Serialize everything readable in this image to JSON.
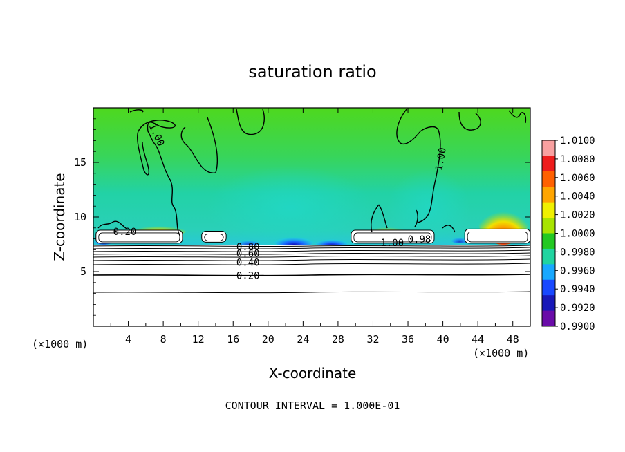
{
  "chart_data": {
    "type": "heatmap",
    "title": "saturation ratio",
    "xlabel": "X-coordinate",
    "ylabel": "Z-coordinate",
    "x_unit_left": "(×1000 m)",
    "x_unit_right": "(×1000 m)",
    "xlim": [
      0,
      50
    ],
    "ylim": [
      0,
      20
    ],
    "x_ticks": [
      4,
      8,
      12,
      16,
      20,
      24,
      28,
      32,
      36,
      40,
      44,
      48
    ],
    "x_tick_labels": [
      "4",
      "8",
      "12",
      "16",
      "20",
      "24",
      "28",
      "32",
      "36",
      "40",
      "44",
      "48"
    ],
    "y_ticks": [
      5,
      10,
      15
    ],
    "y_tick_labels": [
      "5",
      "10",
      "15"
    ],
    "footer": "CONTOUR INTERVAL = 1.000E-01",
    "colorbar": {
      "min": 0.99,
      "max": 1.01,
      "levels": [
        "1.0100",
        "1.0080",
        "1.0060",
        "1.0040",
        "1.0020",
        "1.0000",
        "0.9980",
        "0.9960",
        "0.9940",
        "0.9920",
        "0.9900"
      ],
      "colors": [
        "#f8a0a0",
        "#ee1c1c",
        "#ff6000",
        "#ffa500",
        "#f0f000",
        "#a8e400",
        "#22c822",
        "#20d4a0",
        "#18a8ff",
        "#1848ff",
        "#1818b8",
        "#6a0ca8"
      ]
    },
    "contour_labels": [
      {
        "text": "1.00",
        "x": 7.2,
        "z": 17.5,
        "angle": 65
      },
      {
        "text": "1.00",
        "x": 39.8,
        "z": 15.3,
        "angle": -80
      },
      {
        "text": "1.00",
        "x": 34.2,
        "z": 7.6,
        "angle": 0
      },
      {
        "text": "0.98",
        "x": 37.3,
        "z": 7.9,
        "angle": 0
      },
      {
        "text": "0.20",
        "x": 3.6,
        "z": 8.6,
        "angle": 0
      },
      {
        "text": "0.80",
        "x": 17.7,
        "z": 7.2,
        "angle": 0
      },
      {
        "text": "0.60",
        "x": 17.7,
        "z": 6.6,
        "angle": 0
      },
      {
        "text": "0.40",
        "x": 17.7,
        "z": 5.8,
        "angle": 0
      },
      {
        "text": "0.20",
        "x": 17.7,
        "z": 4.6,
        "angle": 0
      }
    ],
    "cloud_regions": [
      {
        "x0": 0.3,
        "x1": 10.2,
        "z0": 7.6,
        "z1": 8.8
      },
      {
        "x0": 12.4,
        "x1": 15.2,
        "z0": 7.7,
        "z1": 8.7
      },
      {
        "x0": 29.5,
        "x1": 39.0,
        "z0": 7.6,
        "z1": 8.8
      },
      {
        "x0": 42.5,
        "x1": 50.0,
        "z0": 7.6,
        "z1": 8.9
      }
    ]
  }
}
